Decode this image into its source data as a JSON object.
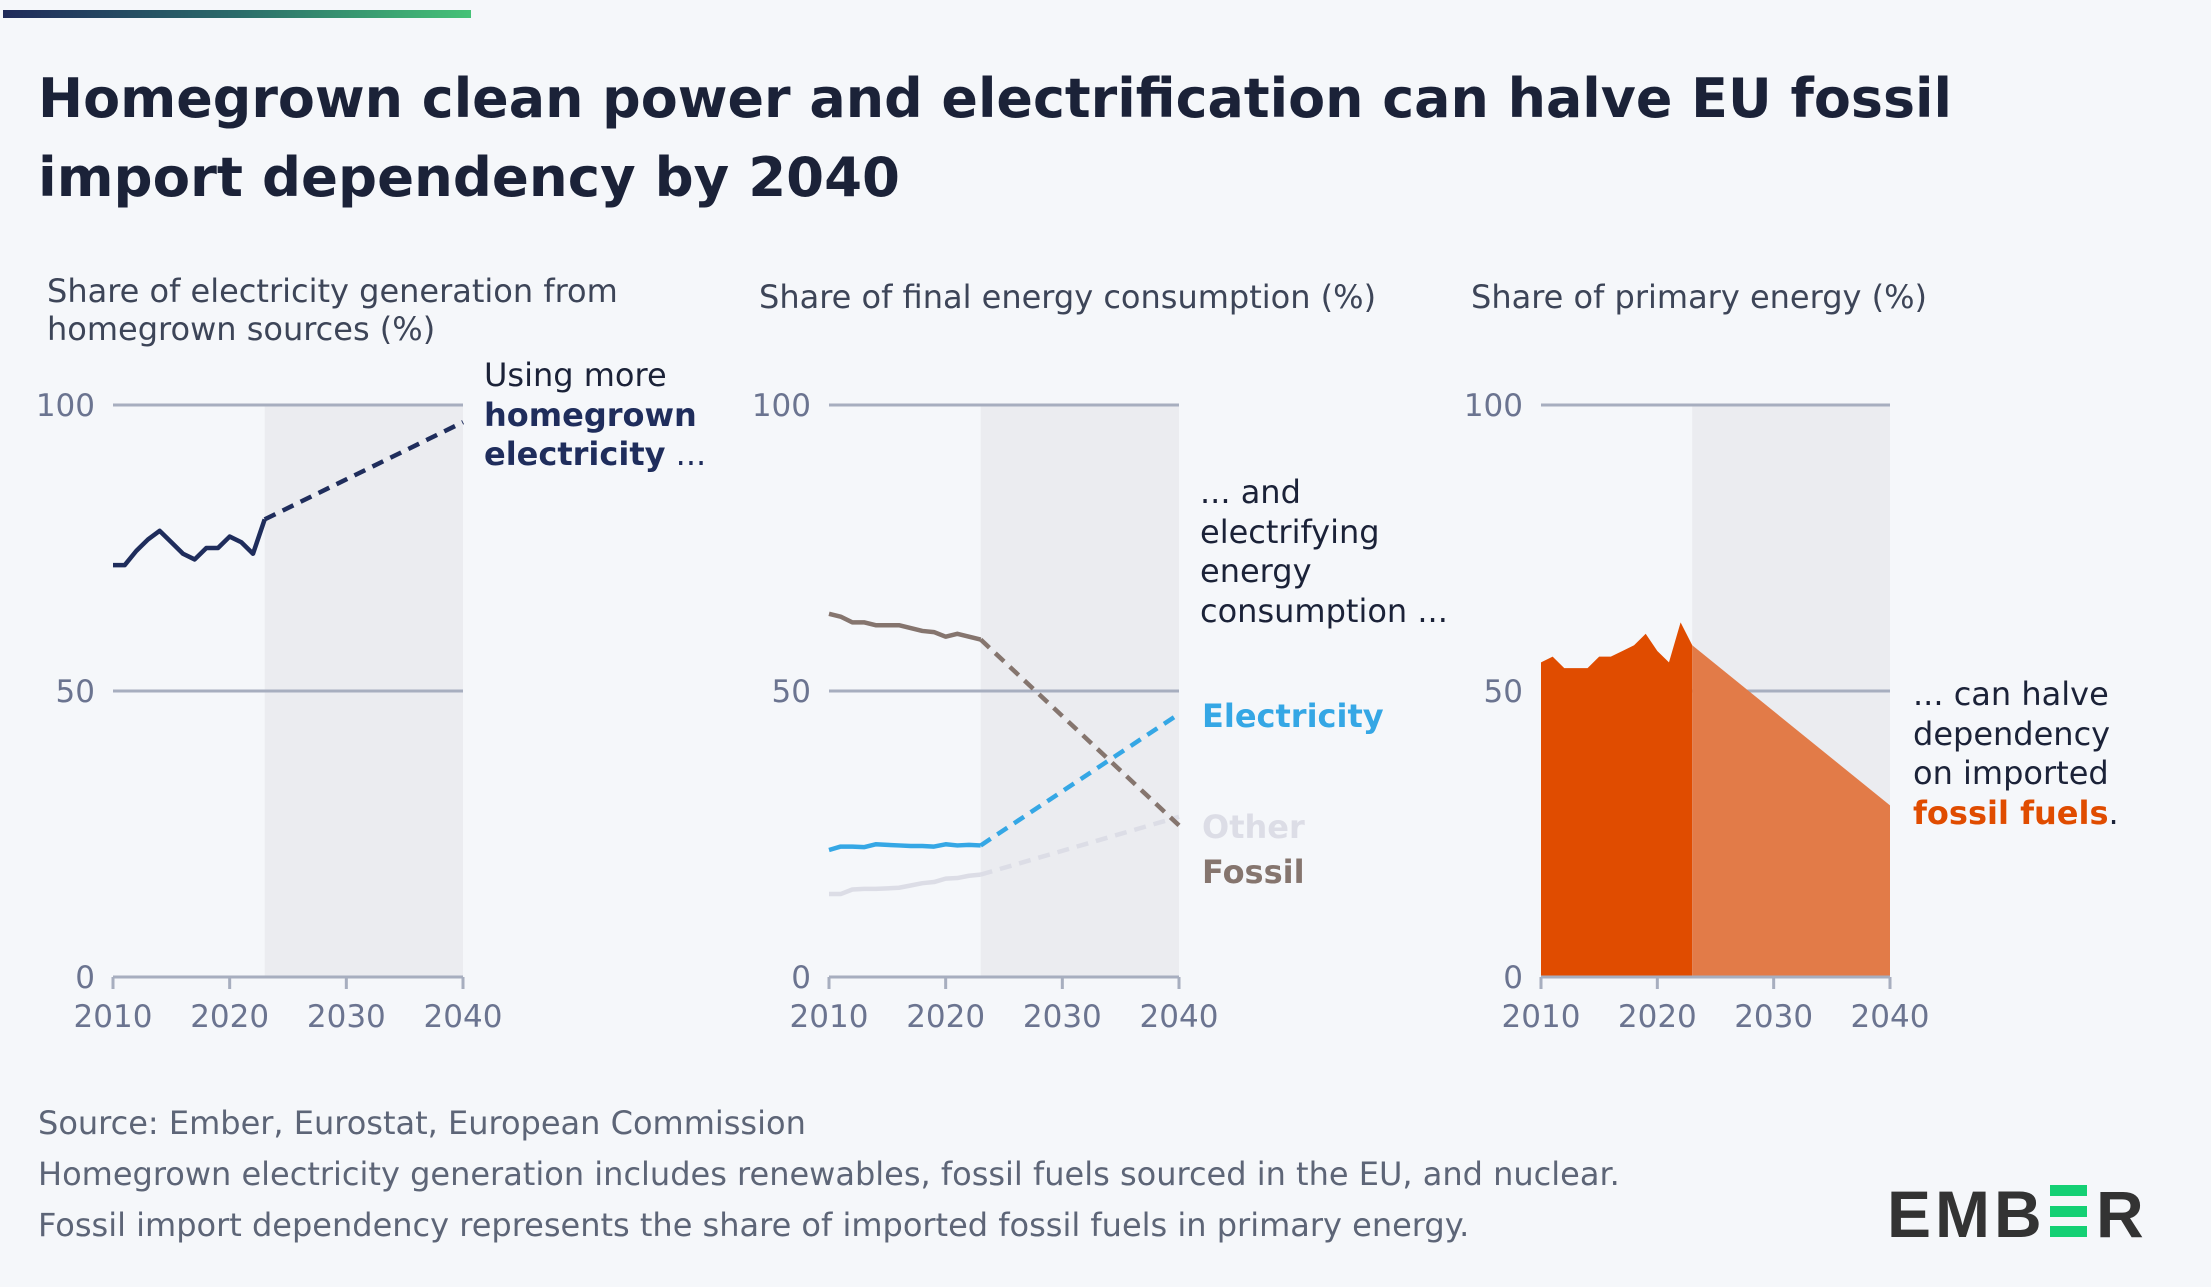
{
  "title_lines": [
    "Homegrown clean power and electrification can halve EU fossil",
    "import dependency by 2040"
  ],
  "colors": {
    "navy": "#1f2d5c",
    "electricity": "#35a7e5",
    "fossil": "#85756e",
    "other": "#dcdde6",
    "fossil_imports_historic": "#e04c00",
    "fossil_imports_projected": "#e27b48",
    "projection_shading": "#ebecf0",
    "gridline": "#a7aebf",
    "logo_accent": "#14d074"
  },
  "chart_data": [
    {
      "type": "line",
      "title_lines": [
        "Share of electricity generation from",
        "homegrown sources (%)"
      ],
      "ylim": [
        0,
        100
      ],
      "xlim": [
        2010,
        2040
      ],
      "yticks": [
        "0",
        "50",
        "100"
      ],
      "xticks": [
        "2010",
        "2020",
        "2030",
        "2040"
      ],
      "projection_start": 2023,
      "grid": true,
      "series": [
        {
          "key": "homegrown",
          "historic": {
            "x": [
              2010,
              2011,
              2012,
              2013,
              2014,
              2015,
              2016,
              2017,
              2018,
              2019,
              2020,
              2021,
              2022,
              2023
            ],
            "y": [
              72,
              72,
              74.5,
              76.5,
              78,
              76,
              74,
              73,
              75,
              75,
              77,
              76,
              74,
              80
            ]
          },
          "projection": {
            "x": [
              2023,
              2040
            ],
            "y": [
              80,
              97
            ]
          }
        }
      ],
      "annotation": {
        "line1": "Using more",
        "line2": "homegrown",
        "line3a": "electricity",
        "line3b": " ..."
      }
    },
    {
      "type": "line",
      "title": "Share of final energy consumption (%)",
      "ylim": [
        0,
        100
      ],
      "xlim": [
        2010,
        2040
      ],
      "yticks": [
        "0",
        "50",
        "100"
      ],
      "xticks": [
        "2010",
        "2020",
        "2030",
        "2040"
      ],
      "projection_start": 2023,
      "grid": true,
      "series": [
        {
          "key": "fossil",
          "name": "Fossil",
          "historic": {
            "x": [
              2010,
              2011,
              2012,
              2013,
              2014,
              2015,
              2016,
              2017,
              2018,
              2019,
              2020,
              2021,
              2022,
              2023
            ],
            "y": [
              63.5,
              63,
              62,
              62,
              61.5,
              61.5,
              61.5,
              61,
              60.5,
              60.3,
              59.5,
              60,
              59.5,
              59
            ]
          },
          "projection": {
            "x": [
              2023,
              2040
            ],
            "y": [
              59,
              26.5
            ]
          }
        },
        {
          "key": "electricity",
          "name": "Electricity",
          "historic": {
            "x": [
              2010,
              2011,
              2012,
              2013,
              2014,
              2015,
              2016,
              2017,
              2018,
              2019,
              2020,
              2021,
              2022,
              2023
            ],
            "y": [
              22.2,
              22.8,
              22.8,
              22.7,
              23.2,
              23.1,
              23,
              22.9,
              22.9,
              22.8,
              23.2,
              23,
              23.1,
              23
            ]
          },
          "projection": {
            "x": [
              2023,
              2040
            ],
            "y": [
              23,
              46
            ]
          }
        },
        {
          "key": "other",
          "name": "Other",
          "historic": {
            "x": [
              2010,
              2011,
              2012,
              2013,
              2014,
              2015,
              2016,
              2017,
              2018,
              2019,
              2020,
              2021,
              2022,
              2023
            ],
            "y": [
              14.5,
              14.5,
              15.3,
              15.4,
              15.4,
              15.5,
              15.6,
              16,
              16.4,
              16.6,
              17.2,
              17.3,
              17.7,
              17.9
            ]
          },
          "projection": {
            "x": [
              2023,
              2040
            ],
            "y": [
              17.9,
              28
            ]
          }
        }
      ],
      "annotation": {
        "line1": "... and",
        "line2": "electrifying",
        "line3": "energy",
        "line4": "consumption ..."
      }
    },
    {
      "type": "area",
      "title": "Share of primary energy (%)",
      "ylim": [
        0,
        100
      ],
      "xlim": [
        2010,
        2040
      ],
      "yticks": [
        "0",
        "50",
        "100"
      ],
      "xticks": [
        "2010",
        "2020",
        "2030",
        "2040"
      ],
      "projection_start": 2023,
      "grid": true,
      "series": [
        {
          "key": "fossil_imports",
          "historic": {
            "x": [
              2010,
              2011,
              2012,
              2013,
              2014,
              2015,
              2016,
              2017,
              2018,
              2019,
              2020,
              2021,
              2022,
              2023
            ],
            "y": [
              55,
              56,
              54,
              54,
              54,
              56,
              56,
              57,
              58,
              60,
              57,
              55,
              62,
              58
            ]
          },
          "projection": {
            "x": [
              2023,
              2040
            ],
            "y": [
              58,
              30
            ]
          }
        }
      ],
      "annotation": {
        "line1": "... can halve",
        "line2": "dependency",
        "line3": "on imported",
        "line4a": "fossil fuels",
        "line4b": "."
      }
    }
  ],
  "footer": {
    "source": "Source: Ember, Eurostat, European Commission",
    "note1": "Homegrown electricity generation includes renewables, fossil fuels sourced in the EU, and nuclear.",
    "note2": "Fossil import dependency represents the share of imported fossil fuels in primary energy."
  },
  "logo": {
    "text": "EMBER"
  }
}
